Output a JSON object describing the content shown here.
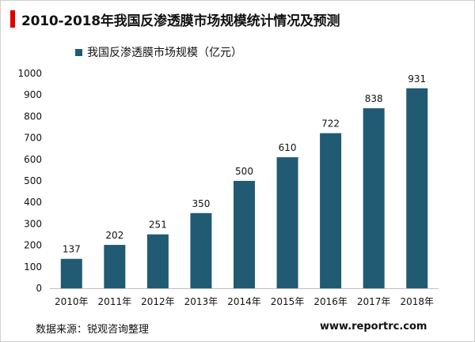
{
  "title": "2010-2018年我国反渗透膜市场规模统计情况及预测",
  "colors": {
    "bar": "#215A73",
    "accent": "#E00000"
  },
  "chart_data": {
    "type": "bar",
    "title": "2010-2018年我国反渗透膜市场规模统计情况及预测",
    "categories": [
      "2010年",
      "2011年",
      "2012年",
      "2013年",
      "2014年",
      "2015年",
      "2016年",
      "2017年",
      "2018年"
    ],
    "series": [
      {
        "name": "我国反渗透膜市场规模（亿元）",
        "values": [
          137,
          202,
          251,
          350,
          500,
          610,
          722,
          838,
          931
        ]
      }
    ],
    "ylim": [
      0,
      1000
    ],
    "yticks": [
      0,
      100,
      200,
      300,
      400,
      500,
      600,
      700,
      800,
      900,
      1000
    ],
    "grid": false,
    "legend": "top-left",
    "data_labels": true
  },
  "footer": {
    "source": "数据来源：锐观咨询整理",
    "website": "www.reportrc.com"
  }
}
